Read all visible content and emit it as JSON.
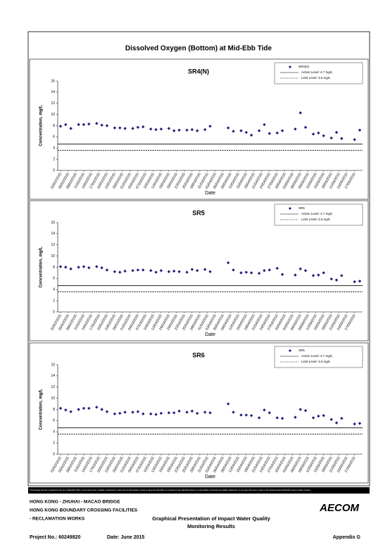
{
  "page_title": "Dissolved Oxygen (Bottom) at Mid-Ebb Tide",
  "chart_data": [
    {
      "type": "scatter",
      "title": "SR4(N)",
      "x_label": "Date",
      "y_label": "Concentration, mg/L",
      "ylim": [
        0,
        16
      ],
      "yticks": [
        0,
        2,
        4,
        6,
        8,
        10,
        12,
        14,
        16
      ],
      "xlim": [
        "02/02/2015",
        "29/05/2015"
      ],
      "xticks": [
        "02/02/2015",
        "05/02/2015",
        "08/02/2015",
        "11/02/2015",
        "14/02/2015",
        "17/02/2015",
        "20/02/2015",
        "23/02/2015",
        "26/02/2015",
        "01/03/2015",
        "04/03/2015",
        "07/03/2015",
        "10/03/2015",
        "13/03/2015",
        "16/03/2015",
        "19/03/2015",
        "22/03/2015",
        "25/03/2015",
        "28/03/2015",
        "31/03/2015",
        "03/04/2015",
        "06/04/2015",
        "09/04/2015",
        "12/04/2015",
        "15/04/2015",
        "18/04/2015",
        "21/04/2015",
        "24/04/2015",
        "27/04/2015",
        "30/04/2015",
        "03/05/2015",
        "06/05/2015",
        "09/05/2015",
        "12/05/2015",
        "15/05/2015",
        "18/05/2015",
        "21/05/2015",
        "24/05/2015",
        "27/05/2015"
      ],
      "series": [
        {
          "name": "SR4(N)",
          "color": "#1f1f7a",
          "x": [
            "02/02/2015",
            "04/02/2015",
            "06/02/2015",
            "09/02/2015",
            "11/02/2015",
            "13/02/2015",
            "16/02/2015",
            "18/02/2015",
            "20/02/2015",
            "23/02/2015",
            "25/02/2015",
            "27/02/2015",
            "02/03/2015",
            "04/03/2015",
            "06/03/2015",
            "09/03/2015",
            "11/03/2015",
            "13/03/2015",
            "16/03/2015",
            "18/03/2015",
            "20/03/2015",
            "23/03/2015",
            "25/03/2015",
            "27/03/2015",
            "30/03/2015",
            "01/04/2015",
            "08/04/2015",
            "10/04/2015",
            "13/04/2015",
            "15/04/2015",
            "17/04/2015",
            "20/04/2015",
            "22/04/2015",
            "24/04/2015",
            "27/04/2015",
            "29/04/2015",
            "04/05/2015",
            "06/05/2015",
            "08/05/2015",
            "11/05/2015",
            "13/05/2015",
            "15/05/2015",
            "18/05/2015",
            "20/05/2015",
            "22/05/2015",
            "27/05/2015",
            "29/05/2015"
          ],
          "values": [
            7.9,
            8.2,
            7.5,
            8.2,
            8.2,
            8.3,
            8.4,
            8.1,
            8.0,
            7.6,
            7.6,
            7.5,
            7.5,
            7.7,
            7.8,
            7.4,
            7.3,
            7.4,
            7.5,
            7.1,
            7.2,
            7.2,
            7.3,
            7.1,
            7.3,
            7.9,
            7.6,
            7.0,
            7.1,
            6.8,
            6.3,
            7.1,
            8.2,
            6.6,
            6.7,
            7.1,
            7.4,
            10.3,
            7.7,
            6.5,
            6.7,
            6.2,
            5.8,
            6.8,
            5.7,
            5.5,
            7.2
          ]
        }
      ],
      "lines": [
        {
          "name": "Action Level: 4.7 mg/L",
          "value": 4.7,
          "style": "solid"
        },
        {
          "name": "Limit Level: 3.6 mg/L",
          "value": 3.6,
          "style": "dashed"
        }
      ]
    },
    {
      "type": "scatter",
      "title": "SR5",
      "x_label": "Date",
      "y_label": "Concentration, mg/L",
      "ylim": [
        0,
        16
      ],
      "yticks": [
        0,
        2,
        4,
        6,
        8,
        10,
        12,
        14,
        16
      ],
      "xlim": [
        "02/02/2015",
        "29/05/2015"
      ],
      "xticks": [
        "02/02/2015",
        "05/02/2015",
        "08/02/2015",
        "11/02/2015",
        "14/02/2015",
        "17/02/2015",
        "20/02/2015",
        "23/02/2015",
        "26/02/2015",
        "01/03/2015",
        "04/03/2015",
        "07/03/2015",
        "10/03/2015",
        "13/03/2015",
        "16/03/2015",
        "19/03/2015",
        "22/03/2015",
        "25/03/2015",
        "28/03/2015",
        "31/03/2015",
        "03/04/2015",
        "06/04/2015",
        "09/04/2015",
        "12/04/2015",
        "15/04/2015",
        "18/04/2015",
        "21/04/2015",
        "24/04/2015",
        "27/04/2015",
        "30/04/2015",
        "03/05/2015",
        "06/05/2015",
        "09/05/2015",
        "12/05/2015",
        "15/05/2015",
        "18/05/2015",
        "21/05/2015",
        "24/05/2015",
        "27/05/2015"
      ],
      "series": [
        {
          "name": "SR5",
          "color": "#1f1f7a",
          "x": [
            "02/02/2015",
            "04/02/2015",
            "06/02/2015",
            "09/02/2015",
            "11/02/2015",
            "13/02/2015",
            "16/02/2015",
            "18/02/2015",
            "20/02/2015",
            "23/02/2015",
            "25/02/2015",
            "27/02/2015",
            "02/03/2015",
            "04/03/2015",
            "06/03/2015",
            "09/03/2015",
            "11/03/2015",
            "13/03/2015",
            "16/03/2015",
            "18/03/2015",
            "20/03/2015",
            "23/03/2015",
            "25/03/2015",
            "27/03/2015",
            "30/03/2015",
            "01/04/2015",
            "08/04/2015",
            "10/04/2015",
            "13/04/2015",
            "15/04/2015",
            "17/04/2015",
            "20/04/2015",
            "22/04/2015",
            "24/04/2015",
            "27/04/2015",
            "29/04/2015",
            "04/05/2015",
            "06/05/2015",
            "08/05/2015",
            "11/05/2015",
            "13/05/2015",
            "15/05/2015",
            "18/05/2015",
            "20/05/2015",
            "22/05/2015",
            "27/05/2015",
            "29/05/2015"
          ],
          "values": [
            8.1,
            8.0,
            7.7,
            8.0,
            8.1,
            7.9,
            8.1,
            7.9,
            7.5,
            7.2,
            7.1,
            7.3,
            7.4,
            7.5,
            7.5,
            7.4,
            7.1,
            7.4,
            7.2,
            7.3,
            7.2,
            7.1,
            7.6,
            7.4,
            7.6,
            7.2,
            8.8,
            7.5,
            7.0,
            7.1,
            7.0,
            6.9,
            7.4,
            7.5,
            7.8,
            6.7,
            6.6,
            7.7,
            7.4,
            6.5,
            6.6,
            7.0,
            5.9,
            5.7,
            6.5,
            5.4,
            5.5
          ]
        }
      ],
      "lines": [
        {
          "name": "Action Level: 4.7 mg/L",
          "value": 4.7,
          "style": "solid"
        },
        {
          "name": "Limit Level: 3.6 mg/L",
          "value": 3.6,
          "style": "dashed"
        }
      ]
    },
    {
      "type": "scatter",
      "title": "SR6",
      "x_label": "Date",
      "y_label": "Concentration, mg/L",
      "ylim": [
        0,
        16
      ],
      "yticks": [
        0,
        2,
        4,
        6,
        8,
        10,
        12,
        14,
        16
      ],
      "xlim": [
        "02/02/2015",
        "29/05/2015"
      ],
      "xticks": [
        "02/02/2015",
        "05/02/2015",
        "08/02/2015",
        "11/02/2015",
        "14/02/2015",
        "17/02/2015",
        "20/02/2015",
        "23/02/2015",
        "26/02/2015",
        "01/03/2015",
        "04/03/2015",
        "07/03/2015",
        "10/03/2015",
        "13/03/2015",
        "16/03/2015",
        "19/03/2015",
        "22/03/2015",
        "25/03/2015",
        "28/03/2015",
        "31/03/2015",
        "03/04/2015",
        "06/04/2015",
        "09/04/2015",
        "12/04/2015",
        "15/04/2015",
        "18/04/2015",
        "21/04/2015",
        "24/04/2015",
        "27/04/2015",
        "30/04/2015",
        "03/05/2015",
        "06/05/2015",
        "09/05/2015",
        "12/05/2015",
        "15/05/2015",
        "18/05/2015",
        "21/05/2015",
        "24/05/2015",
        "27/05/2015"
      ],
      "series": [
        {
          "name": "SR6",
          "color": "#1f1f7a",
          "x": [
            "02/02/2015",
            "04/02/2015",
            "06/02/2015",
            "09/02/2015",
            "11/02/2015",
            "13/02/2015",
            "16/02/2015",
            "18/02/2015",
            "20/02/2015",
            "23/02/2015",
            "25/02/2015",
            "27/02/2015",
            "02/03/2015",
            "04/03/2015",
            "06/03/2015",
            "09/03/2015",
            "11/03/2015",
            "13/03/2015",
            "16/03/2015",
            "18/03/2015",
            "20/03/2015",
            "23/03/2015",
            "25/03/2015",
            "27/03/2015",
            "30/03/2015",
            "01/04/2015",
            "08/04/2015",
            "10/04/2015",
            "13/04/2015",
            "15/04/2015",
            "17/04/2015",
            "20/04/2015",
            "22/04/2015",
            "24/04/2015",
            "27/04/2015",
            "29/04/2015",
            "04/05/2015",
            "06/05/2015",
            "08/05/2015",
            "11/05/2015",
            "13/05/2015",
            "15/05/2015",
            "18/05/2015",
            "20/05/2015",
            "22/05/2015",
            "27/05/2015",
            "29/05/2015"
          ],
          "values": [
            8.2,
            7.9,
            7.6,
            8.0,
            8.2,
            8.2,
            8.4,
            8.0,
            7.6,
            7.2,
            7.3,
            7.5,
            7.5,
            7.6,
            7.2,
            7.2,
            7.1,
            7.3,
            7.4,
            7.4,
            7.7,
            7.5,
            7.7,
            7.3,
            7.5,
            7.4,
            9.0,
            7.5,
            7.0,
            7.0,
            6.9,
            6.5,
            7.9,
            7.4,
            6.5,
            6.4,
            6.6,
            8.0,
            7.8,
            6.5,
            6.8,
            6.9,
            6.2,
            5.6,
            6.4,
            5.4,
            5.5
          ]
        }
      ],
      "lines": [
        {
          "name": "Action Level: 4.7 mg/L",
          "value": 4.7,
          "style": "solid"
        },
        {
          "name": "Limit Level: 3.6 mg/L",
          "value": 3.6,
          "style": "dashed"
        }
      ]
    }
  ],
  "footer": {
    "disclaimer": "This Drawing has been prepared for the use of AECOM's client. It may not be used, modified, reproduced or relied upon by third parties, except as agreed by AECOM or as required by law. AECOM accepts no responsibility, and denies any liability whatsoever, to any party that uses or relies on this drawing without AECOM's express written consent.",
    "project_lines": [
      "HONG KONG - ZHUHAI - MACAO BRIDGE",
      "HONG KONG BOUNDARY CROSSING FACILITIES",
      "- RECLAMATION WORKS"
    ],
    "heading": [
      "Graphical Presentation of Impact Water Quality",
      "Monitoring Results"
    ],
    "logo": "AECOM",
    "project_no": "Project No.: 60249820",
    "date": "Date: June 2015",
    "appendix": "Appendix G"
  }
}
